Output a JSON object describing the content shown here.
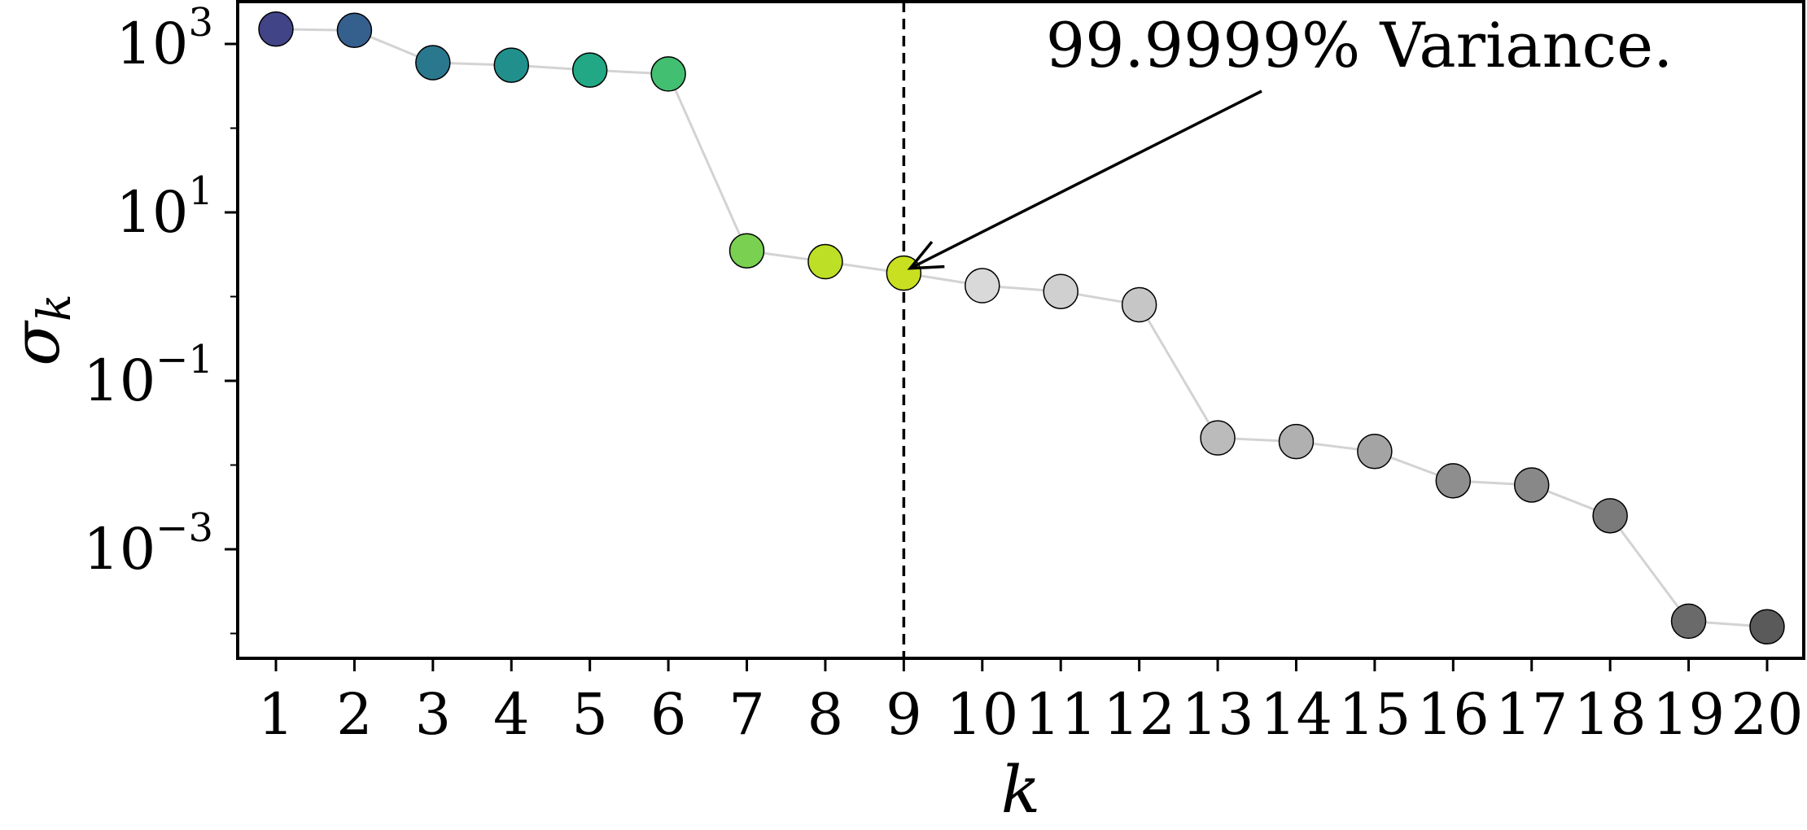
{
  "chart_data": {
    "type": "scatter",
    "title": "",
    "xlabel": "k",
    "ylabel": "σ",
    "ylabel_subscript": "k",
    "y_scale": "log",
    "ylim": [
      5e-05,
      10000
    ],
    "xlim": [
      0.5,
      20.5
    ],
    "grid": false,
    "x": [
      1,
      2,
      3,
      4,
      5,
      6,
      7,
      8,
      9,
      10,
      11,
      12,
      13,
      14,
      15,
      16,
      17,
      18,
      19,
      20
    ],
    "values": [
      1500,
      1450,
      600,
      560,
      490,
      440,
      3.5,
      2.6,
      1.9,
      1.35,
      1.15,
      0.8,
      0.021,
      0.019,
      0.0145,
      0.0065,
      0.0058,
      0.0025,
      0.00014,
      0.00012
    ],
    "point_colors": [
      "#414487",
      "#35608d",
      "#2a788e",
      "#21908d",
      "#22a884",
      "#43bf71",
      "#7ad151",
      "#bddf26",
      "#c8e020",
      "#d9d9d9",
      "#d0d0d0",
      "#c6c6c6",
      "#bbbbbb",
      "#b0b0b0",
      "#a4a4a4",
      "#8e8e8e",
      "#888888",
      "#7a7a7a",
      "#6a6a6a",
      "#5a5a5a"
    ],
    "line_color": "#d3d3d3",
    "x_ticks": [
      "1",
      "2",
      "3",
      "4",
      "5",
      "6",
      "7",
      "8",
      "9",
      "10",
      "11",
      "12",
      "13",
      "14",
      "15",
      "16",
      "17",
      "18",
      "19",
      "20"
    ],
    "y_ticks": [
      {
        "value": 1000,
        "base": "10",
        "exp": "3"
      },
      {
        "value": 10,
        "base": "10",
        "exp": "1"
      },
      {
        "value": 0.1,
        "base": "10",
        "exp": "−1"
      },
      {
        "value": 0.001,
        "base": "10",
        "exp": "−3"
      }
    ],
    "vline_x": 9,
    "annotation": {
      "text": "99.9999% Variance.",
      "target_x": 9
    }
  }
}
